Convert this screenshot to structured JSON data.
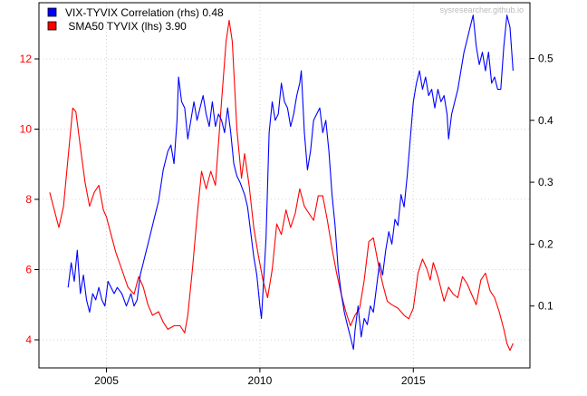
{
  "watermark": "sysresearcher.github.io",
  "colors": {
    "left_series": "#ff0000",
    "right_series": "#0000ff",
    "axis": "#000000",
    "grid": "#c8c8c8",
    "watermark": "#bbbbbb"
  },
  "chart_data": {
    "type": "line",
    "grid": true,
    "legend_position": "top-left",
    "x_range": [
      2002.8,
      2018.8
    ],
    "x_ticks": [
      {
        "value": 2005,
        "label": "2005"
      },
      {
        "value": 2010,
        "label": "2010"
      },
      {
        "value": 2015,
        "label": "2015"
      }
    ],
    "y_left": {
      "range": [
        3.2,
        13.6
      ],
      "ticks": [
        {
          "value": 4,
          "label": "4"
        },
        {
          "value": 6,
          "label": "6"
        },
        {
          "value": 8,
          "label": "8"
        },
        {
          "value": 10,
          "label": "10"
        },
        {
          "value": 12,
          "label": "12"
        }
      ]
    },
    "y_right": {
      "range": [
        0.0,
        0.59
      ],
      "ticks": [
        {
          "value": 0.1,
          "label": "0.1"
        },
        {
          "value": 0.2,
          "label": "0.2"
        },
        {
          "value": 0.3,
          "label": "0.3"
        },
        {
          "value": 0.4,
          "label": "0.4"
        },
        {
          "value": 0.5,
          "label": "0.5"
        }
      ]
    },
    "series": [
      {
        "name": "SMA50 TYVIX (lhs)",
        "legend_label": " SMA50 TYVIX (lhs) 3.90",
        "axis": "left",
        "color": "#ff0000",
        "points": [
          [
            2003.15,
            8.2
          ],
          [
            2003.3,
            7.7
          ],
          [
            2003.45,
            7.2
          ],
          [
            2003.6,
            7.8
          ],
          [
            2003.75,
            9.2
          ],
          [
            2003.9,
            10.6
          ],
          [
            2004.0,
            10.5
          ],
          [
            2004.15,
            9.5
          ],
          [
            2004.3,
            8.5
          ],
          [
            2004.45,
            7.8
          ],
          [
            2004.6,
            8.2
          ],
          [
            2004.75,
            8.4
          ],
          [
            2004.9,
            7.7
          ],
          [
            2005.0,
            7.5
          ],
          [
            2005.15,
            7.0
          ],
          [
            2005.3,
            6.5
          ],
          [
            2005.5,
            6.0
          ],
          [
            2005.7,
            5.5
          ],
          [
            2005.9,
            5.3
          ],
          [
            2006.05,
            5.8
          ],
          [
            2006.2,
            5.5
          ],
          [
            2006.35,
            5.0
          ],
          [
            2006.5,
            4.7
          ],
          [
            2006.7,
            4.8
          ],
          [
            2006.85,
            4.5
          ],
          [
            2007.0,
            4.3
          ],
          [
            2007.2,
            4.4
          ],
          [
            2007.4,
            4.4
          ],
          [
            2007.55,
            4.2
          ],
          [
            2007.65,
            4.7
          ],
          [
            2007.8,
            6.0
          ],
          [
            2007.95,
            7.5
          ],
          [
            2008.1,
            8.8
          ],
          [
            2008.25,
            8.3
          ],
          [
            2008.4,
            8.8
          ],
          [
            2008.55,
            8.4
          ],
          [
            2008.75,
            10.8
          ],
          [
            2008.9,
            12.5
          ],
          [
            2009.0,
            13.1
          ],
          [
            2009.1,
            12.5
          ],
          [
            2009.25,
            10.0
          ],
          [
            2009.4,
            8.6
          ],
          [
            2009.5,
            9.3
          ],
          [
            2009.65,
            8.4
          ],
          [
            2009.8,
            7.2
          ],
          [
            2009.95,
            6.4
          ],
          [
            2010.1,
            5.7
          ],
          [
            2010.25,
            5.2
          ],
          [
            2010.4,
            6.0
          ],
          [
            2010.55,
            7.3
          ],
          [
            2010.7,
            7.0
          ],
          [
            2010.85,
            7.7
          ],
          [
            2011.0,
            7.2
          ],
          [
            2011.15,
            7.6
          ],
          [
            2011.3,
            8.3
          ],
          [
            2011.45,
            7.8
          ],
          [
            2011.6,
            7.6
          ],
          [
            2011.75,
            7.4
          ],
          [
            2011.9,
            8.1
          ],
          [
            2012.05,
            8.1
          ],
          [
            2012.2,
            7.4
          ],
          [
            2012.35,
            6.6
          ],
          [
            2012.5,
            5.9
          ],
          [
            2012.65,
            5.3
          ],
          [
            2012.8,
            4.8
          ],
          [
            2012.95,
            4.4
          ],
          [
            2013.1,
            4.7
          ],
          [
            2013.25,
            4.9
          ],
          [
            2013.4,
            5.7
          ],
          [
            2013.55,
            6.8
          ],
          [
            2013.7,
            6.9
          ],
          [
            2013.85,
            6.2
          ],
          [
            2014.0,
            5.6
          ],
          [
            2014.15,
            5.1
          ],
          [
            2014.3,
            5.0
          ],
          [
            2014.5,
            4.9
          ],
          [
            2014.7,
            4.7
          ],
          [
            2014.85,
            4.6
          ],
          [
            2015.0,
            4.9
          ],
          [
            2015.15,
            5.9
          ],
          [
            2015.3,
            6.3
          ],
          [
            2015.45,
            6.0
          ],
          [
            2015.55,
            5.7
          ],
          [
            2015.65,
            6.2
          ],
          [
            2015.8,
            5.8
          ],
          [
            2016.0,
            5.1
          ],
          [
            2016.15,
            5.5
          ],
          [
            2016.3,
            5.3
          ],
          [
            2016.45,
            5.2
          ],
          [
            2016.6,
            5.8
          ],
          [
            2016.75,
            5.6
          ],
          [
            2016.9,
            5.3
          ],
          [
            2017.05,
            5.0
          ],
          [
            2017.2,
            5.7
          ],
          [
            2017.35,
            5.9
          ],
          [
            2017.5,
            5.4
          ],
          [
            2017.65,
            5.2
          ],
          [
            2017.8,
            4.8
          ],
          [
            2017.95,
            4.3
          ],
          [
            2018.05,
            3.9
          ],
          [
            2018.15,
            3.7
          ],
          [
            2018.25,
            3.9
          ]
        ]
      },
      {
        "name": "VIX-TYVIX Correlation (rhs)",
        "legend_label": "VIX-TYVIX Correlation (rhs) 0.48",
        "axis": "right",
        "color": "#0000ff",
        "points": [
          [
            2003.75,
            0.13
          ],
          [
            2003.85,
            0.17
          ],
          [
            2003.95,
            0.14
          ],
          [
            2004.05,
            0.19
          ],
          [
            2004.15,
            0.12
          ],
          [
            2004.25,
            0.15
          ],
          [
            2004.35,
            0.11
          ],
          [
            2004.45,
            0.09
          ],
          [
            2004.55,
            0.12
          ],
          [
            2004.65,
            0.11
          ],
          [
            2004.75,
            0.13
          ],
          [
            2004.85,
            0.11
          ],
          [
            2004.95,
            0.1
          ],
          [
            2005.05,
            0.14
          ],
          [
            2005.15,
            0.13
          ],
          [
            2005.25,
            0.12
          ],
          [
            2005.35,
            0.13
          ],
          [
            2005.5,
            0.12
          ],
          [
            2005.65,
            0.1
          ],
          [
            2005.8,
            0.12
          ],
          [
            2005.9,
            0.1
          ],
          [
            2006.0,
            0.11
          ],
          [
            2006.1,
            0.15
          ],
          [
            2006.25,
            0.18
          ],
          [
            2006.4,
            0.21
          ],
          [
            2006.55,
            0.24
          ],
          [
            2006.7,
            0.27
          ],
          [
            2006.85,
            0.32
          ],
          [
            2007.0,
            0.35
          ],
          [
            2007.1,
            0.36
          ],
          [
            2007.2,
            0.33
          ],
          [
            2007.3,
            0.4
          ],
          [
            2007.35,
            0.47
          ],
          [
            2007.45,
            0.43
          ],
          [
            2007.55,
            0.42
          ],
          [
            2007.65,
            0.37
          ],
          [
            2007.75,
            0.4
          ],
          [
            2007.85,
            0.43
          ],
          [
            2007.95,
            0.4
          ],
          [
            2008.05,
            0.42
          ],
          [
            2008.15,
            0.44
          ],
          [
            2008.25,
            0.41
          ],
          [
            2008.35,
            0.39
          ],
          [
            2008.45,
            0.43
          ],
          [
            2008.55,
            0.39
          ],
          [
            2008.65,
            0.41
          ],
          [
            2008.75,
            0.4
          ],
          [
            2008.85,
            0.38
          ],
          [
            2008.95,
            0.42
          ],
          [
            2009.05,
            0.38
          ],
          [
            2009.15,
            0.33
          ],
          [
            2009.25,
            0.31
          ],
          [
            2009.35,
            0.3
          ],
          [
            2009.5,
            0.28
          ],
          [
            2009.6,
            0.26
          ],
          [
            2009.7,
            0.22
          ],
          [
            2009.8,
            0.18
          ],
          [
            2009.9,
            0.15
          ],
          [
            2010.0,
            0.1
          ],
          [
            2010.05,
            0.08
          ],
          [
            2010.12,
            0.14
          ],
          [
            2010.2,
            0.21
          ],
          [
            2010.3,
            0.38
          ],
          [
            2010.4,
            0.43
          ],
          [
            2010.5,
            0.4
          ],
          [
            2010.6,
            0.41
          ],
          [
            2010.7,
            0.46
          ],
          [
            2010.8,
            0.43
          ],
          [
            2010.9,
            0.42
          ],
          [
            2011.0,
            0.39
          ],
          [
            2011.1,
            0.41
          ],
          [
            2011.2,
            0.44
          ],
          [
            2011.3,
            0.46
          ],
          [
            2011.35,
            0.48
          ],
          [
            2011.45,
            0.38
          ],
          [
            2011.55,
            0.32
          ],
          [
            2011.65,
            0.35
          ],
          [
            2011.75,
            0.4
          ],
          [
            2011.85,
            0.41
          ],
          [
            2011.95,
            0.42
          ],
          [
            2012.05,
            0.38
          ],
          [
            2012.15,
            0.4
          ],
          [
            2012.25,
            0.35
          ],
          [
            2012.35,
            0.28
          ],
          [
            2012.45,
            0.23
          ],
          [
            2012.55,
            0.16
          ],
          [
            2012.65,
            0.12
          ],
          [
            2012.75,
            0.09
          ],
          [
            2012.85,
            0.07
          ],
          [
            2012.95,
            0.05
          ],
          [
            2013.05,
            0.03
          ],
          [
            2013.1,
            0.06
          ],
          [
            2013.2,
            0.1
          ],
          [
            2013.3,
            0.05
          ],
          [
            2013.4,
            0.08
          ],
          [
            2013.5,
            0.07
          ],
          [
            2013.6,
            0.1
          ],
          [
            2013.7,
            0.09
          ],
          [
            2013.8,
            0.13
          ],
          [
            2013.9,
            0.17
          ],
          [
            2014.0,
            0.15
          ],
          [
            2014.1,
            0.19
          ],
          [
            2014.2,
            0.22
          ],
          [
            2014.3,
            0.2
          ],
          [
            2014.4,
            0.24
          ],
          [
            2014.5,
            0.23
          ],
          [
            2014.6,
            0.28
          ],
          [
            2014.7,
            0.26
          ],
          [
            2014.8,
            0.31
          ],
          [
            2014.9,
            0.37
          ],
          [
            2015.0,
            0.43
          ],
          [
            2015.1,
            0.46
          ],
          [
            2015.2,
            0.48
          ],
          [
            2015.3,
            0.45
          ],
          [
            2015.4,
            0.47
          ],
          [
            2015.5,
            0.44
          ],
          [
            2015.6,
            0.45
          ],
          [
            2015.7,
            0.42
          ],
          [
            2015.8,
            0.45
          ],
          [
            2015.9,
            0.43
          ],
          [
            2016.0,
            0.44
          ],
          [
            2016.1,
            0.41
          ],
          [
            2016.15,
            0.37
          ],
          [
            2016.25,
            0.41
          ],
          [
            2016.35,
            0.43
          ],
          [
            2016.45,
            0.45
          ],
          [
            2016.55,
            0.48
          ],
          [
            2016.65,
            0.51
          ],
          [
            2016.75,
            0.53
          ],
          [
            2016.85,
            0.55
          ],
          [
            2016.95,
            0.57
          ],
          [
            2017.05,
            0.52
          ],
          [
            2017.15,
            0.49
          ],
          [
            2017.25,
            0.51
          ],
          [
            2017.35,
            0.48
          ],
          [
            2017.45,
            0.51
          ],
          [
            2017.55,
            0.46
          ],
          [
            2017.65,
            0.47
          ],
          [
            2017.75,
            0.45
          ],
          [
            2017.85,
            0.45
          ],
          [
            2017.95,
            0.52
          ],
          [
            2018.05,
            0.57
          ],
          [
            2018.15,
            0.55
          ],
          [
            2018.25,
            0.48
          ]
        ]
      }
    ]
  }
}
